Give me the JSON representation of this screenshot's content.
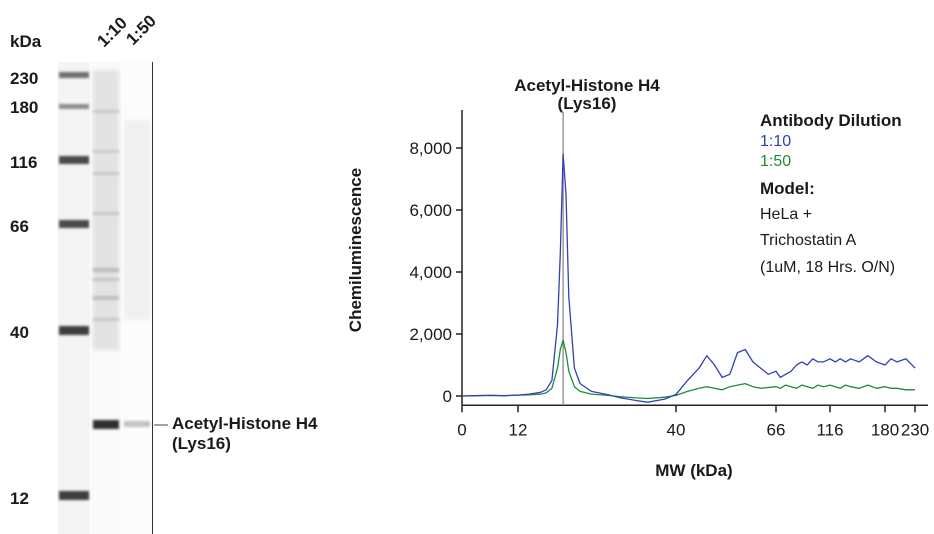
{
  "blot": {
    "unit_label": "kDa",
    "lane_labels": [
      "1:10",
      "1:50"
    ],
    "markers": [
      "230",
      "180",
      "116",
      "66",
      "40",
      "12"
    ],
    "band_label_line1": "Acetyl-Histone H4",
    "band_label_line2": "(Lys16)"
  },
  "legend": {
    "title": "Antibody Dilution",
    "model_title": "Model:",
    "model_lines": [
      "HeLa +",
      "Trichostatin A",
      "(1uM, 18 Hrs. O/N)"
    ]
  },
  "chart_data": {
    "type": "line",
    "title_line1": "Acetyl-Histone H4",
    "title_line2": "(Lys16)",
    "xlabel": "MW (kDa)",
    "ylabel": "Chemiluminescence",
    "x_ticks": [
      "0",
      "12",
      "40",
      "66",
      "116",
      "180",
      "230"
    ],
    "y_ticks": [
      "0",
      "2,000",
      "4,000",
      "6,000",
      "8,000"
    ],
    "ylim": [
      -300,
      9200
    ],
    "grid": false,
    "legend_position": "top-right",
    "peak_marker_kda": 20,
    "series": [
      {
        "name": "1:10",
        "color": "#3040b8",
        "points": [
          [
            0,
            0
          ],
          [
            3,
            10
          ],
          [
            6,
            20
          ],
          [
            9,
            10
          ],
          [
            12,
            30
          ],
          [
            14,
            60
          ],
          [
            16,
            120
          ],
          [
            17,
            200
          ],
          [
            18,
            500
          ],
          [
            19,
            2300
          ],
          [
            19.5,
            4600
          ],
          [
            20,
            7800
          ],
          [
            20.5,
            6500
          ],
          [
            21,
            3200
          ],
          [
            22,
            900
          ],
          [
            23,
            400
          ],
          [
            25,
            150
          ],
          [
            28,
            40
          ],
          [
            30,
            -50
          ],
          [
            33,
            -150
          ],
          [
            35,
            -200
          ],
          [
            38,
            -100
          ],
          [
            40,
            50
          ],
          [
            43,
            500
          ],
          [
            46,
            900
          ],
          [
            48,
            1300
          ],
          [
            50,
            1000
          ],
          [
            52,
            600
          ],
          [
            54,
            700
          ],
          [
            56,
            1400
          ],
          [
            58,
            1500
          ],
          [
            60,
            1100
          ],
          [
            62,
            900
          ],
          [
            64,
            700
          ],
          [
            66,
            800
          ],
          [
            70,
            600
          ],
          [
            75,
            700
          ],
          [
            80,
            800
          ],
          [
            85,
            1000
          ],
          [
            90,
            1100
          ],
          [
            95,
            1000
          ],
          [
            100,
            1200
          ],
          [
            105,
            1100
          ],
          [
            110,
            1100
          ],
          [
            116,
            1200
          ],
          [
            122,
            1100
          ],
          [
            128,
            1200
          ],
          [
            134,
            1100
          ],
          [
            140,
            1200
          ],
          [
            150,
            1100
          ],
          [
            160,
            1300
          ],
          [
            170,
            1100
          ],
          [
            180,
            1000
          ],
          [
            190,
            1200
          ],
          [
            200,
            1100
          ],
          [
            215,
            1200
          ],
          [
            230,
            900
          ]
        ]
      },
      {
        "name": "1:50",
        "color": "#1f8a3a",
        "points": [
          [
            0,
            0
          ],
          [
            3,
            10
          ],
          [
            6,
            20
          ],
          [
            9,
            10
          ],
          [
            12,
            30
          ],
          [
            14,
            40
          ],
          [
            16,
            60
          ],
          [
            17,
            100
          ],
          [
            18,
            250
          ],
          [
            19,
            900
          ],
          [
            19.5,
            1500
          ],
          [
            20,
            1800
          ],
          [
            20.5,
            1400
          ],
          [
            21,
            800
          ],
          [
            22,
            300
          ],
          [
            23,
            150
          ],
          [
            25,
            60
          ],
          [
            28,
            20
          ],
          [
            30,
            -20
          ],
          [
            33,
            -60
          ],
          [
            35,
            -80
          ],
          [
            38,
            -40
          ],
          [
            40,
            20
          ],
          [
            43,
            150
          ],
          [
            46,
            250
          ],
          [
            48,
            300
          ],
          [
            50,
            250
          ],
          [
            52,
            200
          ],
          [
            54,
            300
          ],
          [
            56,
            350
          ],
          [
            58,
            400
          ],
          [
            60,
            300
          ],
          [
            62,
            250
          ],
          [
            66,
            300
          ],
          [
            70,
            250
          ],
          [
            75,
            350
          ],
          [
            80,
            300
          ],
          [
            85,
            250
          ],
          [
            90,
            350
          ],
          [
            95,
            300
          ],
          [
            100,
            250
          ],
          [
            105,
            350
          ],
          [
            110,
            300
          ],
          [
            116,
            350
          ],
          [
            122,
            300
          ],
          [
            128,
            250
          ],
          [
            134,
            350
          ],
          [
            140,
            300
          ],
          [
            150,
            250
          ],
          [
            160,
            350
          ],
          [
            170,
            250
          ],
          [
            180,
            300
          ],
          [
            190,
            250
          ],
          [
            200,
            250
          ],
          [
            215,
            200
          ],
          [
            230,
            200
          ]
        ]
      }
    ]
  }
}
